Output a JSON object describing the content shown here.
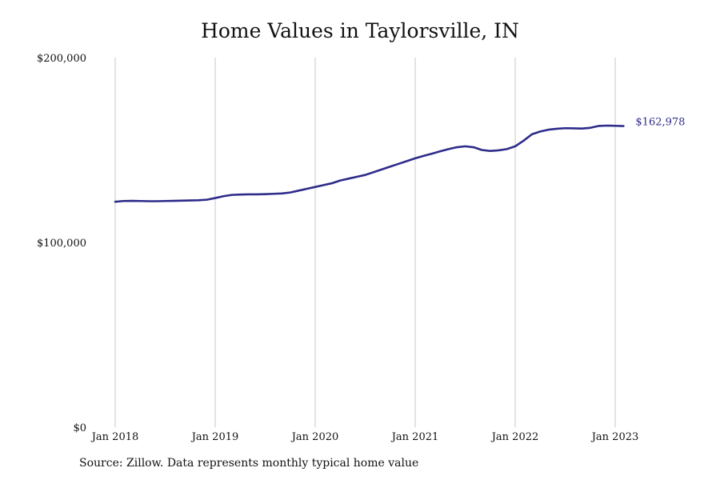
{
  "chart_data": {
    "type": "line",
    "title": "Home Values in Taylorsville, IN",
    "source": "Source: Zillow. Data represents monthly typical home value",
    "xlabel": "",
    "ylabel": "",
    "ylim": [
      0,
      200000
    ],
    "xlim": [
      "2018-01",
      "2023-03"
    ],
    "y_ticks": [
      {
        "value": 0,
        "label": "$0"
      },
      {
        "value": 100000,
        "label": "$100,000"
      },
      {
        "value": 200000,
        "label": "$200,000"
      }
    ],
    "x_ticks": [
      {
        "value": "2018-01",
        "label": "Jan 2018"
      },
      {
        "value": "2019-01",
        "label": "Jan 2019"
      },
      {
        "value": "2020-01",
        "label": "Jan 2020"
      },
      {
        "value": "2021-01",
        "label": "Jan 2021"
      },
      {
        "value": "2022-01",
        "label": "Jan 2022"
      },
      {
        "value": "2023-01",
        "label": "Jan 2023"
      }
    ],
    "grid": "vertical",
    "line_color": "#2e2b8a",
    "end_label": "$162,978",
    "series": [
      {
        "x": [
          "2018-01",
          "2018-02",
          "2018-03",
          "2018-04",
          "2018-05",
          "2018-06",
          "2018-07",
          "2018-08",
          "2018-09",
          "2018-10",
          "2018-11",
          "2018-12",
          "2019-01",
          "2019-02",
          "2019-03",
          "2019-04",
          "2019-05",
          "2019-06",
          "2019-07",
          "2019-08",
          "2019-09",
          "2019-10",
          "2019-11",
          "2019-12",
          "2020-01",
          "2020-02",
          "2020-03",
          "2020-04",
          "2020-05",
          "2020-06",
          "2020-07",
          "2020-08",
          "2020-09",
          "2020-10",
          "2020-11",
          "2020-12",
          "2021-01",
          "2021-02",
          "2021-03",
          "2021-04",
          "2021-05",
          "2021-06",
          "2021-07",
          "2021-08",
          "2021-09",
          "2021-10",
          "2021-11",
          "2021-12",
          "2022-01",
          "2022-02",
          "2022-03",
          "2022-04",
          "2022-05",
          "2022-06",
          "2022-07",
          "2022-08",
          "2022-09",
          "2022-10",
          "2022-11",
          "2022-12",
          "2023-01",
          "2023-02"
        ],
        "y": [
          122000,
          122400,
          122500,
          122400,
          122300,
          122300,
          122400,
          122500,
          122600,
          122700,
          122800,
          123100,
          124000,
          125000,
          125700,
          125900,
          126000,
          126000,
          126100,
          126300,
          126500,
          127000,
          128000,
          129000,
          130000,
          131000,
          132000,
          133500,
          134500,
          135500,
          136500,
          138000,
          139500,
          141000,
          142500,
          144000,
          145500,
          146800,
          148000,
          149300,
          150500,
          151500,
          152000,
          151500,
          150000,
          149500,
          149800,
          150500,
          152000,
          155000,
          158500,
          160000,
          161000,
          161500,
          161800,
          161700,
          161600,
          162000,
          163000,
          163200,
          163100,
          162978
        ]
      }
    ]
  }
}
